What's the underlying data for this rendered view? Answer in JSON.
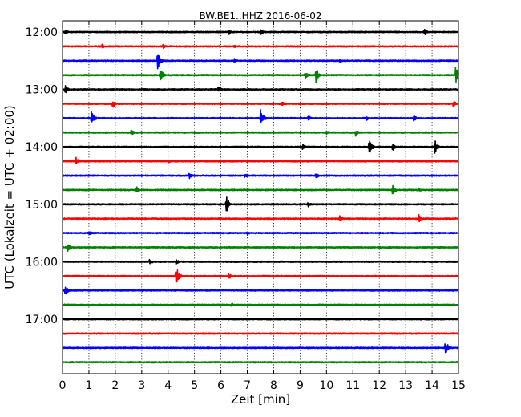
{
  "chart_data": {
    "type": "line",
    "title": "BW.BE1..HHZ 2016-06-02",
    "xlabel": "Zeit  [min]",
    "ylabel": "UTC (Lokalzeit = UTC + 02:00)",
    "xlim": [
      0,
      15
    ],
    "x_ticks": [
      "0",
      "1",
      "2",
      "3",
      "4",
      "5",
      "6",
      "7",
      "8",
      "9",
      "10",
      "11",
      "12",
      "13",
      "14",
      "15"
    ],
    "y_ticks": [
      "12:00",
      "13:00",
      "14:00",
      "15:00",
      "16:00",
      "17:00"
    ],
    "x_grid": true,
    "y_grid": false,
    "trace_colors": [
      "#000000",
      "#ff0000",
      "#0000ff",
      "#008000"
    ],
    "traces": [
      {
        "start": "12:00",
        "events": [
          {
            "t": 0.1,
            "amp": 0.25
          },
          {
            "t": 6.3,
            "amp": 0.25
          },
          {
            "t": 7.5,
            "amp": 0.35
          },
          {
            "t": 13.7,
            "amp": 0.4
          }
        ]
      },
      {
        "start": "12:15",
        "events": [
          {
            "t": 1.5,
            "amp": 0.2
          },
          {
            "t": 3.8,
            "amp": 0.25
          },
          {
            "t": 6.5,
            "amp": 0.2
          }
        ]
      },
      {
        "start": "12:30",
        "events": [
          {
            "t": 3.6,
            "amp": 0.9
          },
          {
            "t": 6.5,
            "amp": 0.3
          },
          {
            "t": 10.5,
            "amp": 0.2
          }
        ]
      },
      {
        "start": "12:45",
        "events": [
          {
            "t": 3.7,
            "amp": 0.8
          },
          {
            "t": 9.2,
            "amp": 0.4
          },
          {
            "t": 9.6,
            "amp": 0.8
          },
          {
            "t": 14.9,
            "amp": 1.0
          }
        ]
      },
      {
        "start": "13:00",
        "events": [
          {
            "t": 0.1,
            "amp": 0.4
          },
          {
            "t": 5.9,
            "amp": 0.4
          }
        ]
      },
      {
        "start": "13:15",
        "events": [
          {
            "t": 1.9,
            "amp": 0.4
          },
          {
            "t": 8.3,
            "amp": 0.25
          },
          {
            "t": 14.8,
            "amp": 0.4
          }
        ]
      },
      {
        "start": "13:30",
        "events": [
          {
            "t": 1.1,
            "amp": 0.8
          },
          {
            "t": 7.5,
            "amp": 1.0
          },
          {
            "t": 9.3,
            "amp": 0.3
          },
          {
            "t": 11.5,
            "amp": 0.3
          },
          {
            "t": 13.3,
            "amp": 0.35
          }
        ]
      },
      {
        "start": "13:45",
        "events": [
          {
            "t": 2.6,
            "amp": 0.3
          },
          {
            "t": 10.0,
            "amp": 0.25
          },
          {
            "t": 11.1,
            "amp": 0.35
          }
        ]
      },
      {
        "start": "14:00",
        "events": [
          {
            "t": 9.1,
            "amp": 0.3
          },
          {
            "t": 11.6,
            "amp": 0.9
          },
          {
            "t": 12.5,
            "amp": 0.4
          },
          {
            "t": 14.1,
            "amp": 0.7
          }
        ]
      },
      {
        "start": "14:15",
        "events": [
          {
            "t": 0.5,
            "amp": 0.4
          },
          {
            "t": 4.0,
            "amp": 0.2
          }
        ]
      },
      {
        "start": "14:30",
        "events": [
          {
            "t": 4.8,
            "amp": 0.35
          },
          {
            "t": 6.9,
            "amp": 0.25
          },
          {
            "t": 9.6,
            "amp": 0.3
          }
        ]
      },
      {
        "start": "14:45",
        "events": [
          {
            "t": 2.8,
            "amp": 0.35
          },
          {
            "t": 12.5,
            "amp": 0.5
          },
          {
            "t": 13.5,
            "amp": 0.2
          }
        ]
      },
      {
        "start": "15:00",
        "events": [
          {
            "t": 6.2,
            "amp": 0.9
          },
          {
            "t": 9.3,
            "amp": 0.25
          }
        ]
      },
      {
        "start": "15:15",
        "events": [
          {
            "t": 10.5,
            "amp": 0.3
          },
          {
            "t": 13.5,
            "amp": 0.4
          }
        ]
      },
      {
        "start": "15:30",
        "events": [
          {
            "t": 1.0,
            "amp": 0.3
          },
          {
            "t": 7.0,
            "amp": 0.2
          }
        ]
      },
      {
        "start": "15:45",
        "events": [
          {
            "t": 0.2,
            "amp": 0.4
          }
        ]
      },
      {
        "start": "16:00",
        "events": [
          {
            "t": 3.3,
            "amp": 0.3
          },
          {
            "t": 4.3,
            "amp": 0.3
          }
        ]
      },
      {
        "start": "16:15",
        "events": [
          {
            "t": 4.3,
            "amp": 1.0
          },
          {
            "t": 6.3,
            "amp": 0.3
          }
        ]
      },
      {
        "start": "16:30",
        "events": [
          {
            "t": 0.1,
            "amp": 0.5
          },
          {
            "t": 3.0,
            "amp": 0.15
          }
        ]
      },
      {
        "start": "16:45",
        "events": [
          {
            "t": 6.4,
            "amp": 0.25
          }
        ]
      },
      {
        "start": "17:00",
        "events": []
      },
      {
        "start": "17:15",
        "events": []
      },
      {
        "start": "17:30",
        "events": [
          {
            "t": 14.5,
            "amp": 0.9
          }
        ]
      },
      {
        "start": "17:45",
        "events": []
      }
    ]
  }
}
